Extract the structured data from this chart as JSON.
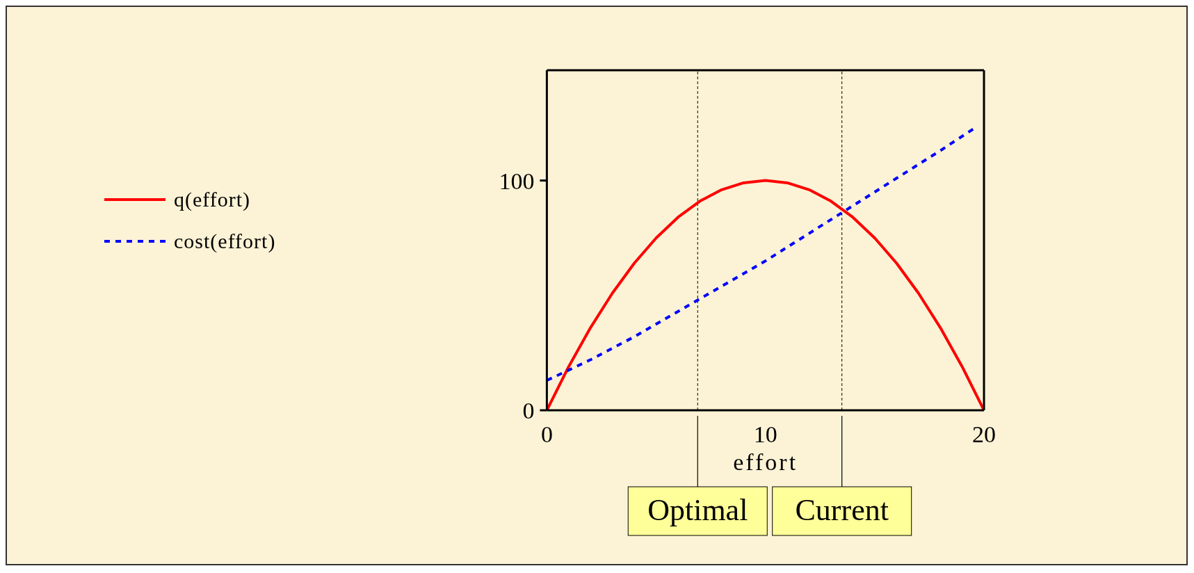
{
  "chart_data": {
    "type": "line",
    "xlabel": "effort",
    "xlim": [
      0,
      20
    ],
    "xticks": [
      0,
      10,
      20
    ],
    "ylim": [
      0,
      148
    ],
    "yticks": [
      0,
      100
    ],
    "grid": false,
    "legend": "left",
    "marker": "none",
    "series": [
      {
        "name": "q(effort)",
        "color": "#ff0000",
        "line_style": "solid",
        "x": [
          0,
          1,
          2,
          3,
          4,
          5,
          6,
          7,
          8,
          9,
          10,
          11,
          12,
          13,
          14,
          15,
          16,
          17,
          18,
          19,
          20
        ],
        "values": [
          0,
          19,
          36,
          51,
          64,
          75,
          84,
          91,
          96,
          99,
          100,
          99,
          96,
          91,
          84,
          75,
          64,
          51,
          36,
          19,
          0
        ]
      },
      {
        "name": "cost(effort)",
        "color": "#0000ff",
        "line_style": "dashed",
        "x": [
          0,
          2,
          4,
          6,
          8,
          10,
          12,
          14,
          16,
          18,
          19.6
        ],
        "values": [
          13,
          22,
          32,
          43,
          54,
          65,
          77,
          89,
          101,
          113,
          123
        ]
      }
    ],
    "ref_lines": [
      {
        "axis": "x",
        "value": 6.9,
        "label": "Optimal",
        "color": "#000000",
        "line_style": "dashed"
      },
      {
        "axis": "x",
        "value": 13.5,
        "label": "Current",
        "color": "#000000",
        "line_style": "dashed"
      }
    ]
  }
}
